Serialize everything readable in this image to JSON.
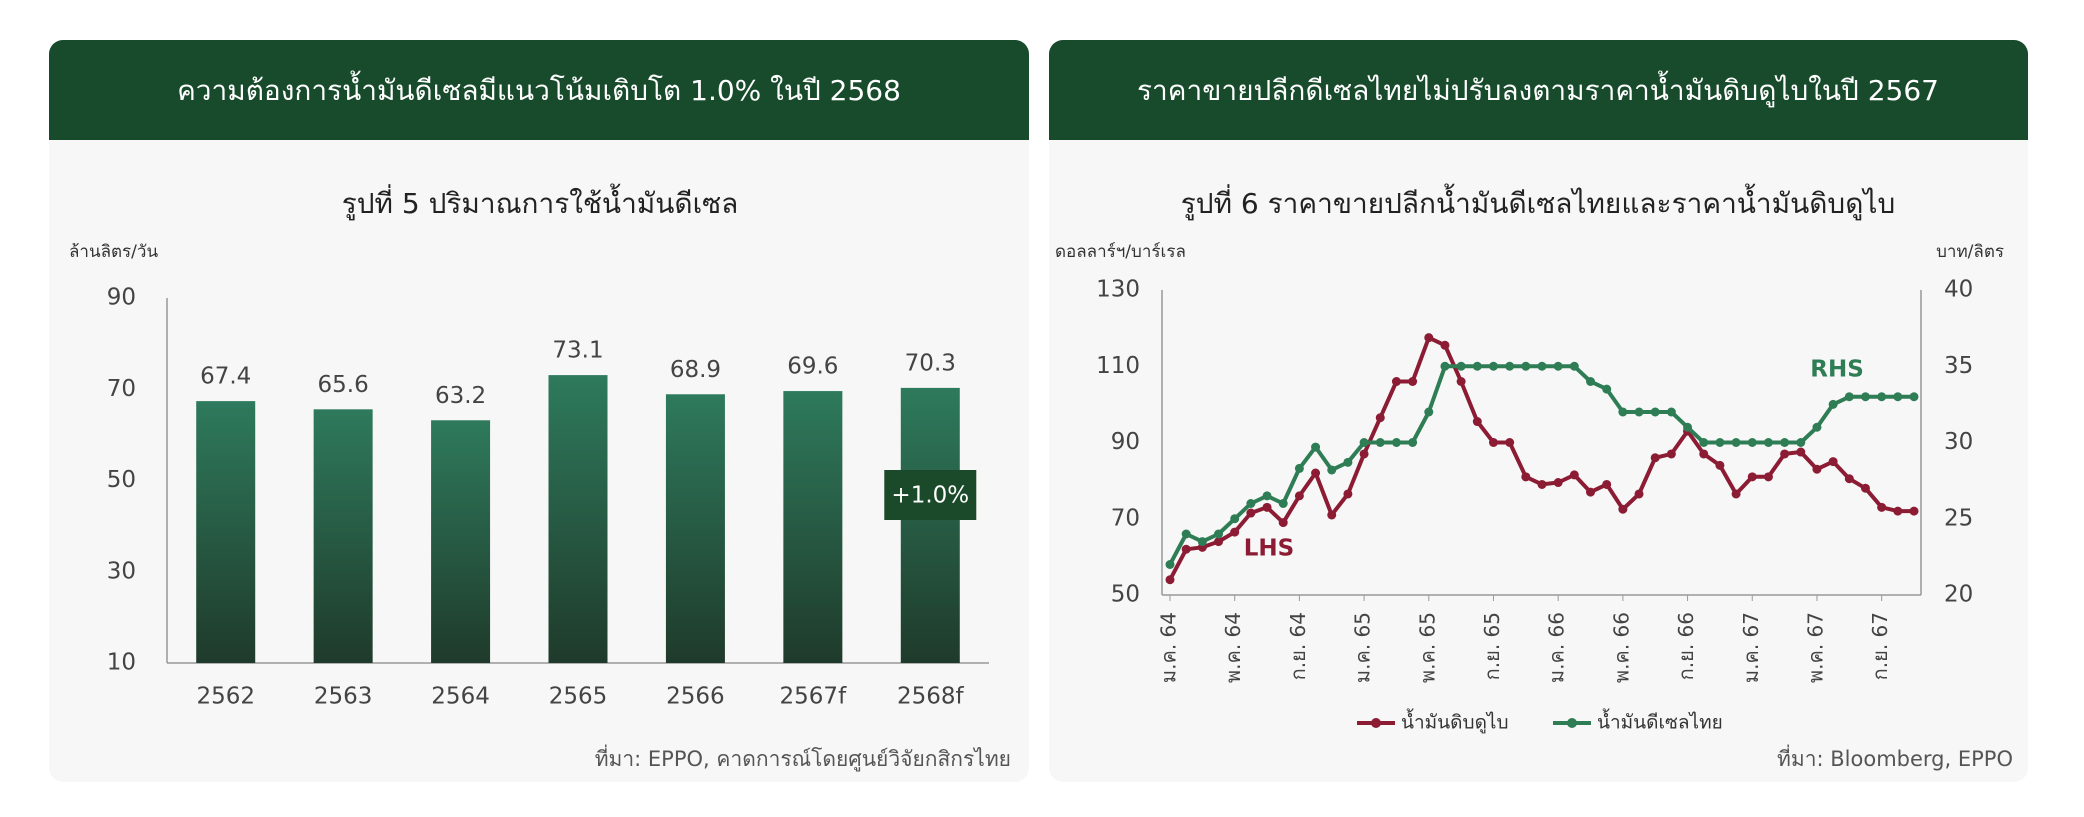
{
  "panels": [
    {
      "header": "ความต้องการน้ำมันดีเซลมีแนวโน้มเติบโต 1.0% ในปี 2568",
      "source": "ที่มา: EPPO, คาดการณ์โดยศูนย์วิจัยกสิกรไทย"
    },
    {
      "header": "ราคาขายปลีกดีเซลไทยไม่ปรับลงตามราคาน้ำมันดิบดูไบในปี 2567",
      "source": "ที่มา: Bloomberg, EPPO"
    }
  ],
  "chart_data": [
    {
      "type": "bar",
      "title": "รูปที่ 5 ปริมาณการใช้น้ำมันดีเซล",
      "y_label": "ล้านลิตร/วัน",
      "categories": [
        "2562",
        "2563",
        "2564",
        "2565",
        "2566",
        "2567f",
        "2568f"
      ],
      "values": [
        67.4,
        65.6,
        63.2,
        73.1,
        68.9,
        69.6,
        70.3
      ],
      "color": "#2e7a5c",
      "ylim": [
        10,
        90
      ],
      "yticks": [
        10,
        30,
        50,
        70,
        90
      ],
      "annotations": [
        {
          "text": "+1.0%"
        }
      ]
    },
    {
      "type": "line",
      "title": "รูปที่ 6 ราคาขายปลีกน้ำมันดีเซลไทยและราคาน้ำมันดิบดูไบ",
      "y_label": "ดอลลาร์ฯ/บาร์เรล",
      "y2_label": "บาท/ลิตร",
      "categories": [
        "ม.ค. 64",
        null,
        null,
        null,
        "พ.ค. 64",
        null,
        null,
        null,
        "ก.ย. 64",
        null,
        null,
        null,
        "ม.ค. 65",
        null,
        null,
        null,
        "พ.ค. 65",
        null,
        null,
        null,
        "ก.ย. 65",
        null,
        null,
        null,
        "ม.ค. 66",
        null,
        null,
        null,
        "พ.ค. 66",
        null,
        null,
        null,
        "ก.ย. 66",
        null,
        null,
        null,
        "ม.ค. 67",
        null,
        null,
        null,
        "พ.ค. 67",
        null,
        null,
        null,
        "ก.ย. 67",
        null,
        null
      ],
      "series": [
        {
          "name": "น้ำมันดิบดูไบ",
          "color": "#8c1c34",
          "axis": "y",
          "values": [
            54,
            62,
            62.5,
            64,
            66.5,
            71.5,
            73,
            69,
            76,
            82,
            71,
            76.5,
            87,
            96.5,
            106,
            106,
            117.5,
            115.5,
            106,
            95.5,
            90,
            90,
            81,
            79,
            79.5,
            81.5,
            77,
            79,
            72.5,
            76.5,
            86,
            87,
            93,
            87,
            84,
            76.5,
            81,
            81,
            87,
            87.5,
            83,
            85,
            80.5,
            78,
            73,
            72,
            72
          ]
        },
        {
          "name": "น้ำมันดีเซลไทย",
          "color": "#2e7d55",
          "axis": "y2",
          "values": [
            22,
            24,
            23.5,
            24,
            25,
            26,
            26.5,
            26,
            28.3,
            29.7,
            28.2,
            28.7,
            30,
            30,
            30,
            30,
            32,
            35,
            35,
            35,
            35,
            35,
            35,
            35,
            35,
            35,
            34,
            33.5,
            32,
            32,
            32,
            32,
            31,
            30,
            30,
            30,
            30,
            30,
            30,
            30,
            31,
            32.5,
            33,
            33,
            33,
            33,
            33
          ]
        }
      ],
      "ylim": [
        50,
        130
      ],
      "yticks": [
        50,
        70,
        90,
        110,
        130
      ],
      "y2lim": [
        20,
        40
      ],
      "y2ticks": [
        20,
        25,
        30,
        35,
        40
      ],
      "legend": "bottom",
      "annotations": [
        {
          "text": "LHS"
        },
        {
          "text": "RHS"
        }
      ]
    }
  ]
}
